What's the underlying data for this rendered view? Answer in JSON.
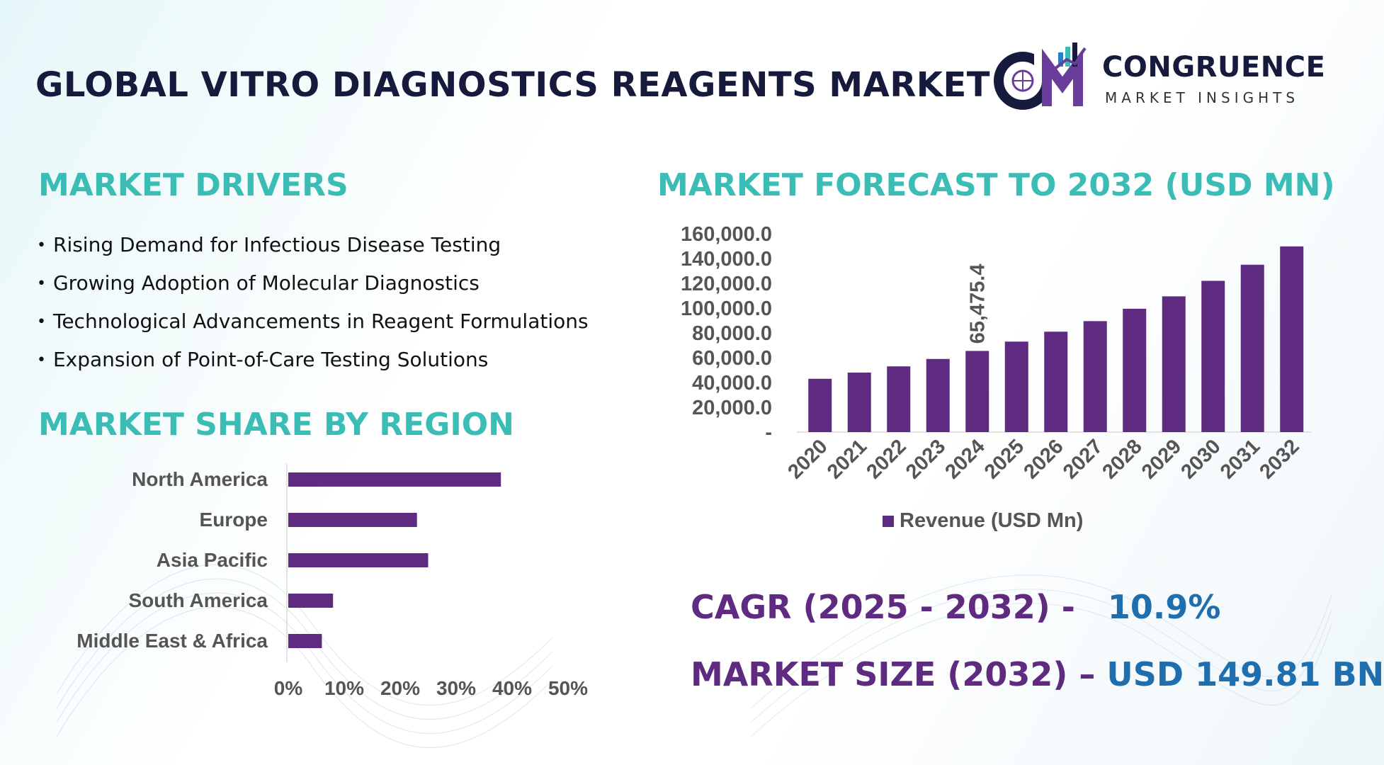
{
  "header": {
    "title": "GLOBAL VITRO DIAGNOSTICS REAGENTS MARKET",
    "logo_name": "CONGRUENCE",
    "logo_tagline": "MARKET INSIGHTS"
  },
  "drivers": {
    "title": "MARKET DRIVERS",
    "items": [
      "Rising Demand for Infectious Disease Testing",
      "Growing Adoption of Molecular Diagnostics",
      "Technological Advancements in Reagent Formulations",
      "Expansion of Point-of-Care Testing Solutions"
    ]
  },
  "region_section": {
    "title": "MARKET SHARE BY REGION"
  },
  "forecast_section": {
    "title": "MARKET FORECAST TO 2032 (USD MN)"
  },
  "kpis": {
    "cagr_label": "CAGR (2025 - 2032) -",
    "cagr_value": "10.9%",
    "size_label": "MARKET SIZE (2032) –",
    "size_value": "USD 149.81 BN"
  },
  "colors": {
    "bar": "#5e2b80",
    "accent": "#3bbdb6",
    "title": "#161b3d",
    "value": "#1f6fae"
  },
  "chart_data": [
    {
      "type": "bar",
      "orientation": "horizontal",
      "categories": [
        "North America",
        "Europe",
        "Asia Pacific",
        "South America",
        "Middle East & Africa"
      ],
      "values": [
        38,
        23,
        25,
        8,
        6
      ],
      "xlim": [
        0,
        50
      ],
      "xticks": [
        "0%",
        "10%",
        "20%",
        "30%",
        "40%",
        "50%"
      ],
      "grid": false
    },
    {
      "type": "bar",
      "categories": [
        "2020",
        "2021",
        "2022",
        "2023",
        "2024",
        "2025",
        "2026",
        "2027",
        "2028",
        "2029",
        "2030",
        "2031",
        "2032"
      ],
      "series": [
        {
          "name": "Revenue (USD Mn)",
          "values": [
            43000,
            48000,
            53000,
            59000,
            65475.4,
            73000,
            81000,
            89500,
            99500,
            109500,
            122000,
            135000,
            149810
          ]
        }
      ],
      "data_labels": [
        {
          "index": 4,
          "text": "65,475.4"
        }
      ],
      "ylim": [
        0,
        160000
      ],
      "yticks": [
        "-",
        "20,000.0",
        "40,000.0",
        "60,000.0",
        "80,000.0",
        "100,000.0",
        "120,000.0",
        "140,000.0",
        "160,000.0"
      ],
      "legend": "bottom",
      "grid": false
    }
  ]
}
